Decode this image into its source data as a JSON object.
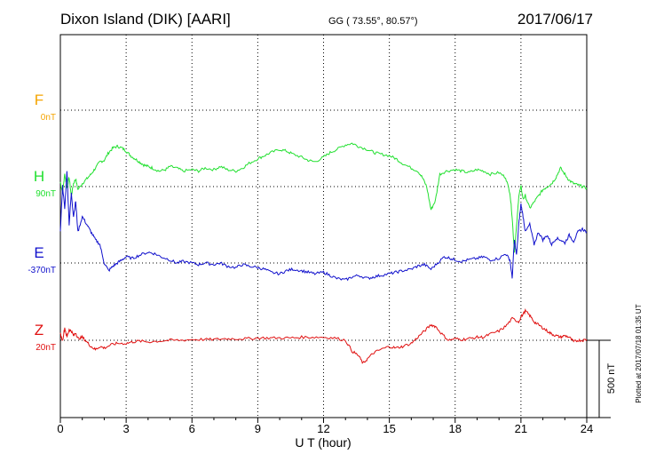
{
  "header": {
    "title": "Dixon Island (DIK)  [AARI]",
    "coords": "GG ( 73.55°,  80.57°)",
    "date": "2017/06/17"
  },
  "chart_data": {
    "type": "line",
    "xlabel": "U T (hour)",
    "xlim": [
      0,
      24
    ],
    "xticks": [
      "0",
      "3",
      "6",
      "9",
      "12",
      "15",
      "18",
      "21",
      "24"
    ],
    "channels": [
      {
        "key": "F",
        "label": "F",
        "baseline": "0nT",
        "color": "#f5a400",
        "x": [],
        "values": []
      },
      {
        "key": "H",
        "label": "H",
        "baseline": "90nT",
        "color": "#22e030",
        "x": [
          0,
          0.1,
          0.2,
          0.3,
          0.4,
          0.5,
          0.6,
          0.7,
          0.8,
          1.0,
          1.2,
          1.4,
          1.6,
          1.8,
          2.0,
          2.2,
          2.4,
          2.6,
          2.8,
          3.0,
          3.2,
          3.4,
          3.6,
          3.8,
          4.0,
          4.2,
          4.5,
          4.8,
          5.0,
          5.3,
          5.6,
          6.0,
          6.3,
          6.6,
          7.0,
          7.3,
          7.6,
          8.0,
          8.3,
          8.6,
          9.0,
          9.3,
          9.6,
          10.0,
          10.3,
          10.6,
          11.0,
          11.3,
          11.6,
          12.0,
          12.3,
          12.6,
          13.0,
          13.3,
          13.6,
          14.0,
          14.3,
          14.6,
          15.0,
          15.3,
          15.6,
          16.0,
          16.3,
          16.5,
          16.7,
          16.9,
          17.1,
          17.3,
          17.6,
          18.0,
          18.3,
          18.6,
          19.0,
          19.3,
          19.6,
          20.0,
          20.3,
          20.5,
          20.6,
          20.7,
          20.8,
          20.9,
          21.0,
          21.1,
          21.2,
          21.4,
          21.6,
          21.8,
          22.0,
          22.2,
          22.4,
          22.6,
          22.8,
          23.0,
          23.2,
          23.4,
          23.6,
          23.8,
          24.0
        ],
        "values": [
          30,
          -40,
          80,
          -10,
          60,
          -60,
          20,
          50,
          -20,
          20,
          50,
          80,
          120,
          160,
          170,
          220,
          250,
          260,
          250,
          230,
          200,
          180,
          160,
          140,
          130,
          120,
          100,
          110,
          130,
          120,
          100,
          110,
          100,
          120,
          110,
          130,
          110,
          100,
          120,
          150,
          180,
          200,
          220,
          240,
          230,
          210,
          190,
          170,
          160,
          190,
          220,
          240,
          270,
          280,
          260,
          240,
          220,
          210,
          200,
          180,
          150,
          120,
          100,
          60,
          0,
          -150,
          -90,
          80,
          100,
          110,
          100,
          90,
          110,
          100,
          80,
          90,
          60,
          -40,
          -200,
          -420,
          -260,
          -60,
          0,
          -80,
          -60,
          -140,
          -100,
          -60,
          -20,
          0,
          20,
          60,
          120,
          80,
          40,
          20,
          10,
          0,
          -10
        ]
      },
      {
        "key": "E",
        "label": "E",
        "baseline": "-370nT",
        "color": "#1010cc",
        "x": [
          0,
          0.1,
          0.2,
          0.3,
          0.4,
          0.5,
          0.6,
          0.7,
          0.8,
          1.0,
          1.2,
          1.4,
          1.6,
          1.8,
          2.0,
          2.2,
          2.4,
          2.6,
          2.8,
          3.0,
          3.3,
          3.6,
          4.0,
          4.3,
          4.6,
          5.0,
          5.3,
          5.6,
          6.0,
          6.3,
          6.6,
          7.0,
          7.3,
          7.6,
          8.0,
          8.3,
          8.6,
          9.0,
          9.3,
          9.6,
          10.0,
          10.3,
          10.6,
          11.0,
          11.3,
          11.6,
          12.0,
          12.3,
          12.6,
          13.0,
          13.3,
          13.6,
          14.0,
          14.3,
          14.6,
          15.0,
          15.3,
          15.6,
          16.0,
          16.3,
          16.6,
          16.9,
          17.2,
          17.5,
          17.8,
          18.0,
          18.3,
          18.6,
          19.0,
          19.3,
          19.6,
          20.0,
          20.3,
          20.5,
          20.6,
          20.7,
          20.8,
          20.9,
          21.0,
          21.1,
          21.2,
          21.4,
          21.6,
          21.8,
          22.0,
          22.2,
          22.4,
          22.6,
          22.8,
          23.0,
          23.2,
          23.4,
          23.6,
          23.8,
          24.0
        ],
        "values": [
          200,
          500,
          350,
          600,
          250,
          450,
          300,
          400,
          200,
          300,
          250,
          200,
          150,
          120,
          0,
          -50,
          -20,
          0,
          20,
          40,
          30,
          50,
          70,
          60,
          40,
          20,
          0,
          10,
          0,
          -10,
          0,
          -10,
          0,
          -20,
          -30,
          -10,
          -20,
          -30,
          -40,
          -60,
          -70,
          -50,
          -40,
          -50,
          -60,
          -70,
          -60,
          -80,
          -100,
          -110,
          -90,
          -80,
          -100,
          -90,
          -80,
          -70,
          -60,
          -50,
          -40,
          -20,
          -10,
          -40,
          0,
          40,
          30,
          20,
          10,
          20,
          30,
          40,
          20,
          30,
          60,
          20,
          -100,
          150,
          50,
          250,
          380,
          300,
          200,
          250,
          120,
          200,
          150,
          180,
          120,
          160,
          150,
          130,
          180,
          140,
          200,
          220,
          200
        ]
      },
      {
        "key": "Z",
        "label": "Z",
        "baseline": "20nT",
        "color": "#e01010",
        "x": [
          0,
          0.1,
          0.2,
          0.3,
          0.4,
          0.5,
          0.6,
          0.7,
          0.8,
          1.0,
          1.2,
          1.4,
          1.6,
          1.8,
          2.0,
          2.3,
          2.6,
          3.0,
          3.3,
          3.6,
          4.0,
          4.5,
          5.0,
          5.5,
          6.0,
          6.5,
          7.0,
          7.5,
          8.0,
          8.5,
          9.0,
          9.5,
          10.0,
          10.5,
          11.0,
          11.5,
          12.0,
          12.5,
          13.0,
          13.3,
          13.6,
          13.8,
          14.0,
          14.3,
          14.6,
          15.0,
          15.3,
          15.6,
          16.0,
          16.3,
          16.6,
          16.9,
          17.1,
          17.4,
          17.7,
          18.0,
          18.3,
          18.6,
          19.0,
          19.3,
          19.6,
          20.0,
          20.3,
          20.6,
          20.9,
          21.0,
          21.2,
          21.4,
          21.6,
          21.8,
          22.0,
          22.2,
          22.4,
          22.6,
          22.8,
          23.0,
          23.2,
          23.4,
          23.6,
          23.8,
          24.0
        ],
        "values": [
          40,
          0,
          80,
          20,
          70,
          60,
          30,
          50,
          10,
          20,
          -10,
          -40,
          -60,
          -40,
          -50,
          -30,
          -20,
          -20,
          -10,
          -5,
          -10,
          -5,
          0,
          0,
          5,
          5,
          5,
          10,
          10,
          10,
          15,
          15,
          15,
          15,
          20,
          20,
          20,
          15,
          0,
          -70,
          -100,
          -150,
          -120,
          -80,
          -60,
          -40,
          -50,
          -40,
          -20,
          20,
          60,
          100,
          90,
          40,
          0,
          10,
          5,
          10,
          20,
          20,
          40,
          60,
          90,
          140,
          120,
          150,
          190,
          160,
          120,
          100,
          80,
          60,
          40,
          30,
          20,
          30,
          20,
          -10,
          0,
          0,
          5
        ]
      }
    ],
    "scale_label": "500 nT",
    "footer_note": "Plotted at 2017/07/18 01:35 UT"
  }
}
